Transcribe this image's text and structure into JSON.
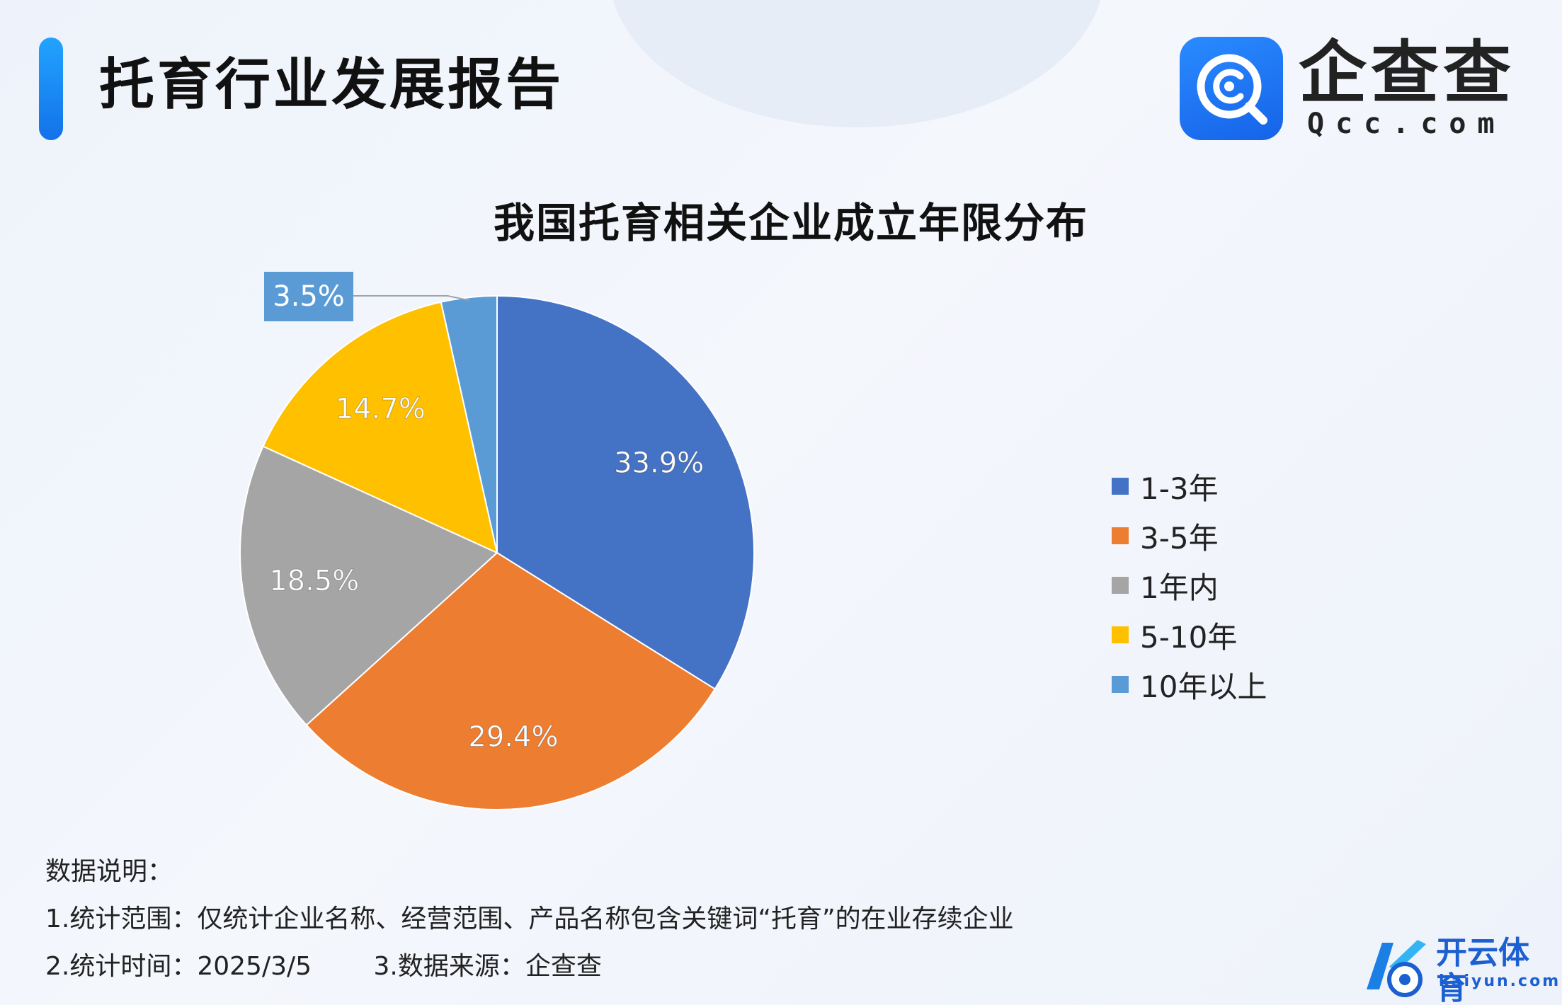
{
  "header": {
    "title": "托育行业发展报告",
    "logo_name": "企查查",
    "logo_domain": "Qcc.com",
    "logo_icon": "qcc-search-icon",
    "accent_color": "#1f8ef5"
  },
  "chart_data": {
    "type": "pie",
    "title": "我国托育相关企业成立年限分布",
    "categories": [
      "1-3年",
      "3-5年",
      "1年内",
      "5-10年",
      "10年以上"
    ],
    "values": [
      33.9,
      29.4,
      18.5,
      14.7,
      3.5
    ],
    "data_labels": [
      "33.9%",
      "29.4%",
      "18.5%",
      "14.7%",
      "3.5%"
    ],
    "colors": [
      "#4472c4",
      "#ed7d31",
      "#a5a5a5",
      "#ffc000",
      "#5b9bd5"
    ],
    "start_angle": "12 o'clock",
    "direction": "clockwise",
    "legend_position": "right"
  },
  "notes": {
    "heading": "数据说明：",
    "scope": "1.统计范围：仅统计企业名称、经营范围、产品名称包含关键词“托育”的在业存续企业",
    "time": "2.统计时间：2025/3/5",
    "source": "3.数据来源：企查查"
  },
  "watermark": {
    "name": "开云体育",
    "domain": "kaiyun.com",
    "icon": "kaiyun-logo-icon",
    "color": "#1b5fd1"
  }
}
